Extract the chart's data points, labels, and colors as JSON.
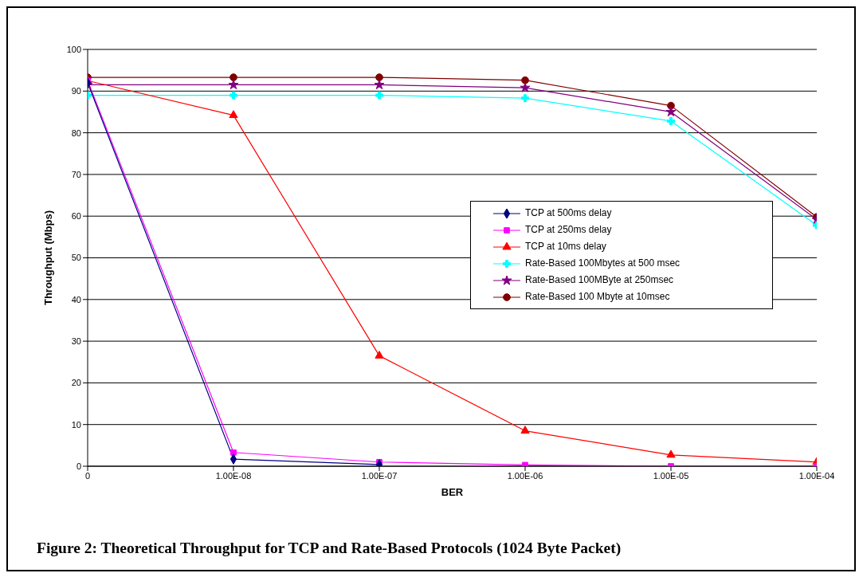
{
  "chart_data": {
    "type": "line",
    "title": "Figure 2: Theoretical Throughput for TCP and Rate-Based Protocols (1024 Byte Packet)",
    "xlabel": "BER",
    "ylabel": "Throughput (Mbps)",
    "categories": [
      "0",
      "1.00E-08",
      "1.00E-07",
      "1.00E-06",
      "1.00E-05",
      "1.00E-04"
    ],
    "ylim": [
      0,
      100
    ],
    "yticks": [
      0,
      10,
      20,
      30,
      40,
      50,
      60,
      70,
      80,
      90,
      100
    ],
    "grid": "y",
    "legend": "right",
    "series": [
      {
        "name": "TCP at 500ms delay",
        "color": "#000080",
        "marker": "diamond",
        "values": [
          92,
          1.7,
          0.4,
          null,
          null,
          null
        ]
      },
      {
        "name": "TCP at 250ms delay",
        "color": "#ff00ff",
        "marker": "square",
        "values": [
          92.5,
          3.3,
          1.0,
          0.3,
          0,
          0
        ]
      },
      {
        "name": "TCP at 10ms delay",
        "color": "#ff0000",
        "marker": "triangle",
        "values": [
          92.5,
          84.2,
          26.5,
          8.5,
          2.7,
          1.0
        ]
      },
      {
        "name": "Rate-Based 100Mbytes at 500 msec",
        "color": "#00ffff",
        "marker": "cross",
        "values": [
          89,
          89,
          89,
          88.3,
          82.8,
          57.8
        ]
      },
      {
        "name": "Rate-Based 100MByte at 250msec",
        "color": "#800080",
        "marker": "star",
        "values": [
          91.5,
          91.5,
          91.5,
          90.8,
          85.0,
          59.2
        ]
      },
      {
        "name": "Rate-Based 100 Mbyte at 10msec",
        "color": "#800000",
        "marker": "circle",
        "values": [
          93.3,
          93.3,
          93.3,
          92.6,
          86.5,
          59.8
        ]
      }
    ]
  }
}
